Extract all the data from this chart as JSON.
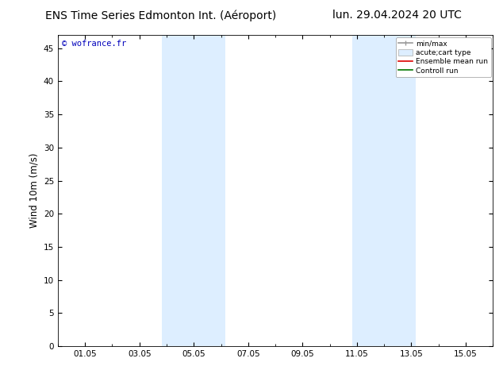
{
  "title_left": "ENS Time Series Edmonton Int. (Aéroport)",
  "title_right": "lun. 29.04.2024 20 UTC",
  "ylabel": "Wind 10m (m/s)",
  "watermark": "© wofrance.fr",
  "xmin": 0.0,
  "xmax": 16.0,
  "ymin": 0,
  "ymax": 47,
  "yticks": [
    0,
    5,
    10,
    15,
    20,
    25,
    30,
    35,
    40,
    45
  ],
  "xtick_labels": [
    "01.05",
    "03.05",
    "05.05",
    "07.05",
    "09.05",
    "11.05",
    "13.05",
    "15.05"
  ],
  "xtick_positions": [
    1,
    3,
    5,
    7,
    9,
    11,
    13,
    15
  ],
  "shaded_bands": [
    {
      "xstart": 3.833,
      "xend": 5.0
    },
    {
      "xstart": 5.0,
      "xend": 6.167
    },
    {
      "xstart": 10.833,
      "xend": 12.0
    },
    {
      "xstart": 12.0,
      "xend": 13.167
    }
  ],
  "shaded_color": "#ddeeff",
  "background_color": "#ffffff",
  "legend_items": [
    {
      "label": "min/max",
      "color": "#999999",
      "lw": 1.2
    },
    {
      "label": "acute;cart type",
      "color": "#cce0f0",
      "lw": 8
    },
    {
      "label": "Ensemble mean run",
      "color": "#dd0000",
      "lw": 1.2
    },
    {
      "label": "Controll run",
      "color": "#007700",
      "lw": 1.2
    }
  ],
  "title_fontsize": 10,
  "axis_fontsize": 8.5,
  "tick_fontsize": 7.5,
  "watermark_color": "#0000bb",
  "border_color": "#000000",
  "fig_width": 6.34,
  "fig_height": 4.9,
  "dpi": 100
}
